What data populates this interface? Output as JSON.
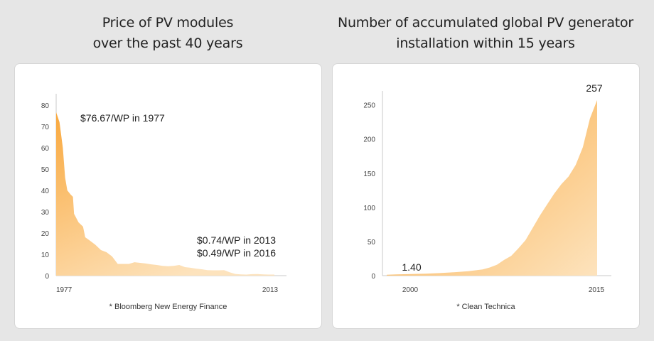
{
  "charts": {
    "left": {
      "title_lines": [
        "Price of PV modules",
        "over the past 40 years"
      ],
      "source": "* Bloomberg New Energy Finance"
    },
    "right": {
      "title_lines": [
        "Number of accumulated global PV generator",
        "installation within 15 years"
      ],
      "source": "* Clean Technica"
    }
  },
  "colors": {
    "fill_dark": "#f9a93f",
    "fill_light": "#fde3bd",
    "background": "#e6e6e6",
    "card": "#ffffff",
    "axis": "#c8c8c8"
  },
  "chart_data": [
    {
      "type": "area",
      "title": "Price of PV modules over the past 40 years",
      "xlabel": "",
      "ylabel": "",
      "x_tick_labels": [
        "1977",
        "2013"
      ],
      "y_ticks": [
        0,
        10,
        20,
        30,
        40,
        50,
        60,
        70,
        80
      ],
      "xlim": [
        1977,
        2016
      ],
      "ylim": [
        0,
        80
      ],
      "grid": false,
      "series": [
        {
          "x": [
            1977,
            1977.6,
            1978.2,
            1978.6,
            1979.0,
            1979.6,
            1980.0,
            1980.2,
            1981.0,
            1981.8,
            1982.2,
            1983.0,
            1984.0,
            1985.0,
            1986.0,
            1987.0,
            1988.0,
            1989.0,
            1990.0,
            1991.0,
            1992.0,
            1993.0,
            1994.0,
            1995.0,
            1996.0,
            1997.0,
            1998.0,
            1999.0,
            2000.0,
            2001.0,
            2002.0,
            2003.0,
            2004.0,
            2005.0,
            2006.0,
            2007.0,
            2008.0,
            2009.0,
            2010.0,
            2011.0,
            2012.0,
            2013.0,
            2014.0,
            2015.0,
            2016.0
          ],
          "values": [
            76.67,
            72,
            60,
            46,
            40,
            38,
            37,
            29,
            25,
            23,
            18,
            16.5,
            14.5,
            12,
            11,
            9,
            5.5,
            5.5,
            5.5,
            6.3,
            6,
            5.7,
            5.3,
            5,
            4.6,
            4.4,
            4.6,
            5,
            4,
            3.7,
            3.3,
            3,
            2.6,
            2.5,
            2.5,
            2.6,
            1.6,
            0.8,
            0.6,
            0.5,
            0.7,
            0.74,
            0.6,
            0.5,
            0.49
          ]
        }
      ],
      "annotations": [
        "$76.67/WP in 1977",
        "$0.74/WP in 2013",
        "$0.49/WP in 2016"
      ]
    },
    {
      "type": "area",
      "title": "Number of accumulated global PV generator installation within 15 years",
      "xlabel": "",
      "ylabel": "",
      "x_tick_labels": [
        "2000",
        "2015"
      ],
      "y_ticks": [
        0,
        50,
        100,
        150,
        200,
        250
      ],
      "xlim": [
        2000,
        2015
      ],
      "ylim": [
        0,
        260
      ],
      "grid": false,
      "series": [
        {
          "x": [
            2000.3,
            2001,
            2002,
            2003,
            2004,
            2005,
            2006,
            2007,
            2007.5,
            2008,
            2008.5,
            2009,
            2009.5,
            2010,
            2010.5,
            2011,
            2011.5,
            2012,
            2012.5,
            2013,
            2013.5,
            2014,
            2014.5,
            2015
          ],
          "values": [
            1.4,
            1.8,
            2.3,
            2.9,
            3.7,
            5,
            6.5,
            9,
            12,
            16,
            23,
            29,
            40,
            52,
            70,
            88,
            104,
            120,
            134,
            145,
            162,
            188,
            230,
            257
          ]
        }
      ],
      "annotations": [
        "1.40",
        "257"
      ]
    }
  ]
}
